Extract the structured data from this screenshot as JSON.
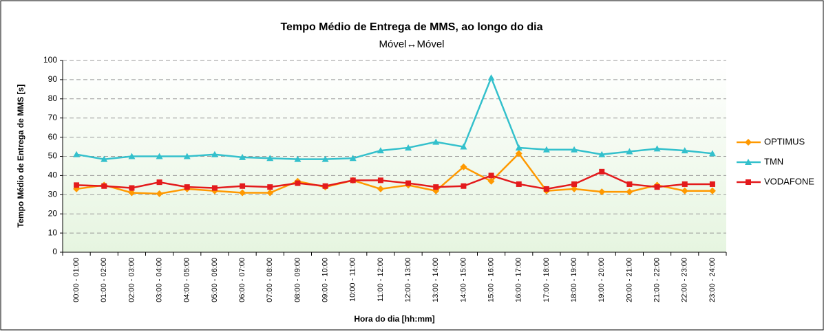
{
  "chart_data": {
    "type": "line",
    "title": "Tempo Médio de Entrega de MMS, ao longo do dia",
    "subtitle": "Móvel↔Móvel",
    "x_label": "Hora do dia [hh:mm]",
    "y_label": "Tempo Médio de Entrega de MMS [s]",
    "categories": [
      "00:00 - 01:00",
      "01:00 - 02:00",
      "02:00 - 03:00",
      "03:00 - 04:00",
      "04:00 - 05:00",
      "05:00 - 06:00",
      "06:00 - 07:00",
      "07:00 - 08:00",
      "08:00 - 09:00",
      "09:00 - 10:00",
      "10:00 - 11:00",
      "11:00 - 12:00",
      "12:00 - 13:00",
      "13:00 - 14:00",
      "14:00 - 15:00",
      "15:00 - 16:00",
      "16:00 - 17:00",
      "17:00 - 18:00",
      "18:00 - 19:00",
      "19:00 - 20:00",
      "20:00 - 21:00",
      "21:00 - 22:00",
      "22:00 - 23:00",
      "23:00 - 24:00"
    ],
    "series": [
      {
        "name": "OPTIMUS",
        "color": "#ff9900",
        "marker": "diamond",
        "values": [
          33,
          35,
          31,
          30.5,
          33,
          32,
          31,
          31,
          37,
          34,
          37.5,
          33,
          35,
          32,
          44.5,
          37,
          51.5,
          32,
          33,
          31.5,
          31.5,
          35,
          32,
          32
        ]
      },
      {
        "name": "TMN",
        "color": "#33c0cc",
        "marker": "triangle",
        "values": [
          51,
          48.5,
          50,
          50,
          50,
          51,
          49.5,
          49,
          48.5,
          48.5,
          49,
          53,
          54.5,
          57.5,
          55,
          91,
          54.5,
          53.5,
          53.5,
          51,
          52.5,
          54,
          53,
          51.5
        ]
      },
      {
        "name": "VODAFONE",
        "color": "#e31a1c",
        "marker": "square",
        "values": [
          35,
          34.5,
          33.5,
          36.5,
          34,
          33.5,
          34.5,
          34,
          36,
          34.5,
          37.5,
          37.5,
          36,
          34,
          34.5,
          40,
          35.5,
          33,
          35.5,
          42,
          35.5,
          34,
          35.5,
          35.5
        ]
      }
    ],
    "ylim": [
      0,
      100
    ],
    "yticks": [
      0,
      10,
      20,
      30,
      40,
      50,
      60,
      70,
      80,
      90,
      100
    ],
    "grid": true,
    "legend": "right"
  }
}
